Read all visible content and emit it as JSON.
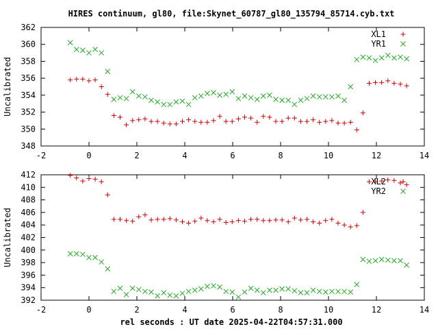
{
  "title": "HIRES continuum, gl80, file:Skynet_60787_gl80_135794_85714.cyb.txt",
  "xlabel": "rel seconds : UT date 2025-04-22T04:57:31.000",
  "colors": {
    "red": "#cc0000",
    "green": "#22aa22"
  },
  "chart_data": [
    {
      "type": "scatter",
      "ylabel": "Uncalibrated",
      "xlim": [
        -2,
        14
      ],
      "ylim": [
        348,
        362
      ],
      "xticks": [
        -2,
        0,
        2,
        4,
        6,
        8,
        10,
        12,
        14
      ],
      "yticks": [
        348,
        350,
        352,
        354,
        356,
        358,
        360,
        362
      ],
      "legend_position": "top-right",
      "series": [
        {
          "name": "XL1",
          "marker": "plus",
          "color": "#cc0000",
          "x": [
            -0.78,
            -0.52,
            -0.26,
            0.0,
            0.26,
            0.52,
            0.78,
            1.04,
            1.3,
            1.56,
            1.82,
            2.08,
            2.34,
            2.6,
            2.86,
            3.12,
            3.38,
            3.64,
            3.9,
            4.16,
            4.42,
            4.68,
            4.94,
            5.2,
            5.46,
            5.72,
            5.98,
            6.24,
            6.5,
            6.76,
            7.02,
            7.28,
            7.54,
            7.8,
            8.06,
            8.32,
            8.58,
            8.84,
            9.1,
            9.36,
            9.62,
            9.88,
            10.14,
            10.4,
            10.66,
            10.92,
            11.18,
            11.44,
            11.7,
            11.96,
            12.22,
            12.48,
            12.74,
            13.0,
            13.26
          ],
          "y": [
            355.8,
            355.9,
            355.9,
            355.7,
            355.8,
            355.0,
            354.1,
            351.6,
            351.4,
            350.5,
            351.0,
            351.1,
            351.2,
            350.9,
            350.9,
            350.7,
            350.6,
            350.6,
            350.9,
            351.1,
            350.9,
            350.8,
            350.8,
            351.0,
            351.5,
            350.9,
            350.9,
            351.2,
            351.4,
            351.3,
            350.8,
            351.5,
            351.4,
            350.9,
            350.9,
            351.3,
            351.3,
            350.9,
            350.9,
            351.1,
            350.8,
            350.9,
            351.0,
            350.7,
            350.7,
            350.8,
            349.9,
            351.9,
            355.4,
            355.5,
            355.5,
            355.7,
            355.4,
            355.3,
            355.1
          ]
        },
        {
          "name": "YR1",
          "marker": "cross",
          "color": "#22aa22",
          "x": [
            -0.78,
            -0.52,
            -0.26,
            0.0,
            0.26,
            0.52,
            0.78,
            1.04,
            1.3,
            1.56,
            1.82,
            2.08,
            2.34,
            2.6,
            2.86,
            3.12,
            3.38,
            3.64,
            3.9,
            4.16,
            4.42,
            4.68,
            4.94,
            5.2,
            5.46,
            5.72,
            5.98,
            6.24,
            6.5,
            6.76,
            7.02,
            7.28,
            7.54,
            7.8,
            8.06,
            8.32,
            8.58,
            8.84,
            9.1,
            9.36,
            9.62,
            9.88,
            10.14,
            10.4,
            10.66,
            10.92,
            11.18,
            11.44,
            11.7,
            11.96,
            12.22,
            12.48,
            12.74,
            13.0,
            13.26
          ],
          "y": [
            360.2,
            359.4,
            359.3,
            359.0,
            359.4,
            359.0,
            356.8,
            353.5,
            353.7,
            353.6,
            354.4,
            353.9,
            353.8,
            353.4,
            353.2,
            352.9,
            352.9,
            353.2,
            353.3,
            352.9,
            353.7,
            353.9,
            354.2,
            354.3,
            354.0,
            354.1,
            354.4,
            353.6,
            353.9,
            353.7,
            353.5,
            353.9,
            354.0,
            353.5,
            353.4,
            353.4,
            352.9,
            353.4,
            353.6,
            353.9,
            353.8,
            353.8,
            353.8,
            353.9,
            353.4,
            355.0,
            358.2,
            358.5,
            358.4,
            358.1,
            358.4,
            358.7,
            358.4,
            358.5,
            358.3
          ]
        }
      ]
    },
    {
      "type": "scatter",
      "ylabel": "Uncalibrated",
      "xlim": [
        -2,
        14
      ],
      "ylim": [
        392,
        412
      ],
      "xticks": [
        -2,
        0,
        2,
        4,
        6,
        8,
        10,
        12,
        14
      ],
      "yticks": [
        392,
        394,
        396,
        398,
        400,
        402,
        404,
        406,
        408,
        410,
        412
      ],
      "legend_position": "top-right",
      "series": [
        {
          "name": "XL2",
          "marker": "plus",
          "color": "#cc0000",
          "x": [
            -0.78,
            -0.52,
            -0.26,
            0.0,
            0.26,
            0.52,
            0.78,
            1.04,
            1.3,
            1.56,
            1.82,
            2.08,
            2.34,
            2.6,
            2.86,
            3.12,
            3.38,
            3.64,
            3.9,
            4.16,
            4.42,
            4.68,
            4.94,
            5.2,
            5.46,
            5.72,
            5.98,
            6.24,
            6.5,
            6.76,
            7.02,
            7.28,
            7.54,
            7.8,
            8.06,
            8.32,
            8.58,
            8.84,
            9.1,
            9.36,
            9.62,
            9.88,
            10.14,
            10.4,
            10.66,
            10.92,
            11.18,
            11.44,
            11.7,
            11.96,
            12.22,
            12.48,
            12.74,
            13.0,
            13.26
          ],
          "y": [
            411.9,
            411.5,
            411.0,
            411.4,
            411.3,
            410.9,
            408.8,
            404.9,
            404.9,
            404.7,
            404.6,
            405.3,
            405.6,
            404.8,
            404.9,
            404.9,
            405.0,
            404.8,
            404.5,
            404.3,
            404.6,
            405.1,
            404.7,
            404.5,
            404.9,
            404.4,
            404.5,
            404.7,
            404.6,
            404.9,
            404.9,
            404.7,
            404.7,
            404.8,
            404.8,
            404.5,
            405.1,
            404.8,
            404.9,
            404.5,
            404.3,
            404.7,
            404.9,
            404.3,
            404.0,
            403.7,
            403.9,
            406.0,
            410.9,
            410.9,
            411.0,
            411.2,
            411.1,
            410.7,
            410.4
          ]
        },
        {
          "name": "YR2",
          "marker": "cross",
          "color": "#22aa22",
          "x": [
            -0.78,
            -0.52,
            -0.26,
            0.0,
            0.26,
            0.52,
            0.78,
            1.04,
            1.3,
            1.56,
            1.82,
            2.08,
            2.34,
            2.6,
            2.86,
            3.12,
            3.38,
            3.64,
            3.9,
            4.16,
            4.42,
            4.68,
            4.94,
            5.2,
            5.46,
            5.72,
            5.98,
            6.24,
            6.5,
            6.76,
            7.02,
            7.28,
            7.54,
            7.8,
            8.06,
            8.32,
            8.58,
            8.84,
            9.1,
            9.36,
            9.62,
            9.88,
            10.14,
            10.4,
            10.66,
            10.92,
            11.18,
            11.44,
            11.7,
            11.96,
            12.22,
            12.48,
            12.74,
            13.0,
            13.26
          ],
          "y": [
            399.4,
            399.4,
            399.3,
            398.8,
            398.8,
            398.1,
            397.0,
            393.4,
            393.9,
            392.9,
            393.9,
            393.7,
            393.4,
            393.3,
            392.7,
            393.2,
            392.8,
            392.7,
            393.1,
            393.4,
            393.6,
            393.8,
            394.2,
            394.3,
            394.1,
            393.4,
            393.3,
            392.5,
            393.3,
            393.9,
            393.6,
            393.2,
            393.6,
            393.6,
            393.8,
            393.8,
            393.5,
            393.2,
            393.2,
            393.6,
            393.4,
            393.3,
            393.4,
            393.4,
            393.4,
            393.3,
            394.5,
            398.5,
            398.2,
            398.3,
            398.5,
            398.4,
            398.3,
            398.3,
            397.6
          ]
        }
      ]
    }
  ]
}
